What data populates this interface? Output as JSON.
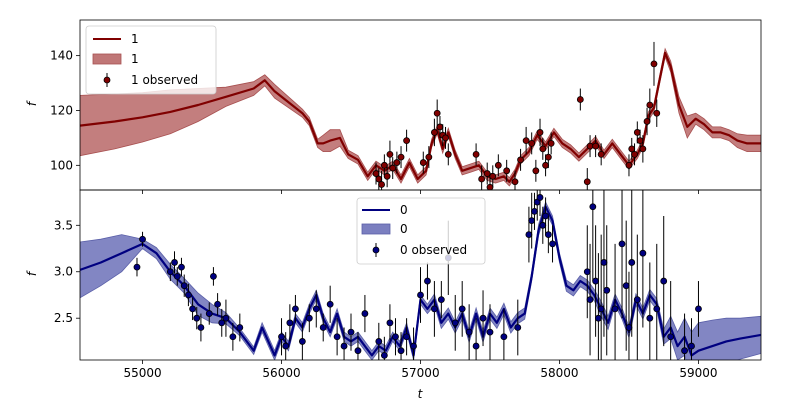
{
  "chart_data": [
    {
      "type": "line",
      "panel": "top",
      "xlim": [
        54550,
        59450
      ],
      "ylim": [
        91,
        153
      ],
      "yticks": [
        100,
        120,
        140
      ],
      "ylabel": "f",
      "xlabel": "",
      "legend": [
        "1",
        "1",
        "1 observed"
      ],
      "legend_position": "top-left",
      "colors": {
        "line": "#800000",
        "band": "#c07777",
        "band_edge": "#a85050"
      },
      "series": [
        {
          "name": "1",
          "kind": "model",
          "x": [
            54550,
            54800,
            55000,
            55200,
            55400,
            55600,
            55800,
            55880,
            55950,
            56050,
            56150,
            56200,
            56260,
            56300,
            56350,
            56420,
            56480,
            56550,
            56620,
            56680,
            56740,
            56800,
            56860,
            56920,
            56980,
            57040,
            57080,
            57120,
            57160,
            57200,
            57250,
            57300,
            57360,
            57420,
            57480,
            57540,
            57600,
            57640,
            57680,
            57720,
            57780,
            57840,
            57900,
            57960,
            58020,
            58080,
            58140,
            58200,
            58260,
            58320,
            58380,
            58440,
            58500,
            58560,
            58600,
            58640,
            58680,
            58720,
            58760,
            58800,
            58860,
            58920,
            58980,
            59040,
            59100,
            59160,
            59220,
            59280,
            59350,
            59450
          ],
          "y": [
            114.5,
            116,
            117.5,
            119.5,
            122,
            125,
            128,
            131,
            127,
            123,
            119,
            116,
            108,
            108,
            109,
            110,
            104,
            102,
            96,
            100,
            98,
            100,
            95,
            101,
            95,
            98,
            108,
            113,
            106,
            112,
            104,
            98,
            99,
            100,
            96,
            95,
            96,
            94,
            97,
            102,
            105,
            111,
            107,
            112,
            108,
            106,
            103,
            106,
            109,
            104,
            108,
            104,
            100,
            104,
            108,
            118,
            121,
            131,
            141,
            136,
            122,
            114,
            117,
            115,
            112,
            112,
            111,
            109,
            108,
            108
          ],
          "band_halfwidth": [
            11,
            10,
            9,
            8,
            6,
            3.5,
            2.5,
            2,
            2.5,
            2,
            1.5,
            1.5,
            1.5,
            3,
            4,
            3,
            1.5,
            1.5,
            1.5,
            1.5,
            1.5,
            1.5,
            1.5,
            1.5,
            1.5,
            1.5,
            1.5,
            1.5,
            1.5,
            1.5,
            1.5,
            1.5,
            1.5,
            1.5,
            1.5,
            1.5,
            1.5,
            1.5,
            1.5,
            1.5,
            1.5,
            1.5,
            1.5,
            1.5,
            1.5,
            1.5,
            1.5,
            1.5,
            1.5,
            1.5,
            1.5,
            1.5,
            1.5,
            1.5,
            1.5,
            1.5,
            1.5,
            1.5,
            1.5,
            2,
            3,
            4,
            2,
            2,
            2,
            2,
            2,
            2.5,
            3,
            3
          ]
        },
        {
          "name": "1 observed",
          "kind": "observed",
          "x": [
            56680,
            56700,
            56720,
            56740,
            56760,
            56780,
            56800,
            56830,
            56860,
            56900,
            57020,
            57060,
            57100,
            57120,
            57140,
            57160,
            57180,
            57200,
            57400,
            57440,
            57480,
            57500,
            57520,
            57560,
            57620,
            57680,
            57720,
            57760,
            57800,
            57830,
            57860,
            57880,
            57900,
            57920,
            57940,
            58150,
            58200,
            58220,
            58260,
            58300,
            58500,
            58520,
            58540,
            58560,
            58580,
            58600,
            58630,
            58650,
            58680,
            58700
          ],
          "y": [
            97,
            95,
            93,
            100,
            96,
            104,
            99,
            101,
            103,
            109,
            101,
            103,
            112,
            119,
            114,
            111,
            110,
            104,
            104,
            95,
            97,
            92,
            96,
            100,
            98,
            94,
            102,
            109,
            108,
            98,
            112,
            106,
            100,
            103,
            108,
            124,
            94,
            107,
            107,
            104,
            100,
            106,
            104,
            112,
            109,
            106,
            116,
            122,
            137,
            119
          ],
          "yerr": [
            4,
            4,
            5,
            4,
            4,
            5,
            4,
            4,
            4,
            4,
            4,
            4,
            5,
            5,
            4,
            4,
            4,
            4,
            4,
            5,
            4,
            4,
            4,
            4,
            4,
            4,
            4,
            5,
            4,
            4,
            5,
            4,
            4,
            4,
            4,
            4,
            5,
            4,
            4,
            4,
            4,
            4,
            4,
            4,
            4,
            5,
            5,
            6,
            8,
            5
          ]
        }
      ]
    },
    {
      "type": "line",
      "panel": "bottom",
      "xlim": [
        54550,
        59450
      ],
      "ylim": [
        2.05,
        3.88
      ],
      "yticks": [
        2.5,
        3.0,
        3.5
      ],
      "ytick_labels": [
        "2.5",
        "3.0",
        "3.5"
      ],
      "xticks": [
        55000,
        56000,
        57000,
        58000,
        59000
      ],
      "ylabel": "f",
      "xlabel": "t",
      "legend": [
        "0",
        "0",
        "0 observed"
      ],
      "legend_position": "upper-center",
      "colors": {
        "line": "#000080",
        "band": "#7b7fc0",
        "band_edge": "#5a5fa8"
      },
      "series": [
        {
          "name": "0",
          "kind": "model",
          "x": [
            54550,
            54700,
            54850,
            55000,
            55100,
            55200,
            55300,
            55400,
            55500,
            55600,
            55700,
            55800,
            55860,
            55950,
            56000,
            56050,
            56100,
            56150,
            56200,
            56250,
            56300,
            56350,
            56400,
            56450,
            56500,
            56550,
            56600,
            56650,
            56700,
            56750,
            56800,
            56850,
            56900,
            56950,
            57000,
            57050,
            57100,
            57150,
            57200,
            57250,
            57300,
            57350,
            57400,
            57450,
            57500,
            57550,
            57600,
            57650,
            57700,
            57750,
            57800,
            57850,
            57900,
            57950,
            58000,
            58050,
            58100,
            58150,
            58200,
            58250,
            58300,
            58350,
            58400,
            58450,
            58500,
            58550,
            58600,
            58650,
            58700,
            58750,
            58800,
            58850,
            58900,
            58950,
            59000,
            59100,
            59200,
            59300,
            59450
          ],
          "y": [
            3.02,
            3.1,
            3.2,
            3.3,
            3.2,
            3.0,
            2.85,
            2.65,
            2.55,
            2.5,
            2.35,
            2.15,
            2.4,
            2.1,
            2.3,
            2.2,
            2.5,
            2.4,
            2.6,
            2.75,
            2.5,
            2.35,
            2.55,
            2.3,
            2.25,
            2.3,
            2.2,
            2.1,
            2.2,
            2.15,
            2.3,
            2.2,
            2.4,
            2.1,
            2.7,
            2.6,
            2.7,
            2.45,
            2.55,
            2.4,
            2.55,
            2.3,
            2.55,
            2.3,
            2.55,
            2.45,
            2.6,
            2.4,
            2.5,
            2.55,
            2.95,
            3.45,
            3.7,
            3.55,
            3.15,
            2.85,
            2.8,
            2.9,
            2.85,
            2.75,
            2.6,
            2.45,
            2.7,
            2.55,
            2.35,
            2.7,
            2.55,
            2.75,
            2.65,
            2.3,
            2.4,
            2.2,
            2.3,
            2.1,
            2.15,
            2.2,
            2.25,
            2.28,
            2.32
          ],
          "band_halfwidth": [
            0.3,
            0.25,
            0.2,
            0.05,
            0.06,
            0.08,
            0.08,
            0.12,
            0.1,
            0.06,
            0.04,
            0.04,
            0.05,
            0.05,
            0.05,
            0.05,
            0.05,
            0.05,
            0.05,
            0.05,
            0.05,
            0.05,
            0.05,
            0.05,
            0.05,
            0.05,
            0.05,
            0.05,
            0.05,
            0.05,
            0.05,
            0.05,
            0.05,
            0.05,
            0.05,
            0.05,
            0.06,
            0.06,
            0.06,
            0.06,
            0.06,
            0.06,
            0.06,
            0.06,
            0.06,
            0.06,
            0.06,
            0.06,
            0.06,
            0.06,
            0.05,
            0.06,
            0.05,
            0.05,
            0.05,
            0.06,
            0.06,
            0.06,
            0.06,
            0.06,
            0.08,
            0.07,
            0.06,
            0.06,
            0.06,
            0.06,
            0.06,
            0.06,
            0.06,
            0.08,
            0.12,
            0.15,
            0.2,
            0.25,
            0.3,
            0.28,
            0.25,
            0.22,
            0.2
          ]
        },
        {
          "name": "0 observed",
          "kind": "observed",
          "x": [
            54960,
            55000,
            55200,
            55230,
            55250,
            55280,
            55300,
            55330,
            55360,
            55390,
            55420,
            55480,
            55510,
            55540,
            55570,
            55600,
            55650,
            55700,
            56000,
            56030,
            56060,
            56100,
            56150,
            56200,
            56250,
            56300,
            56350,
            56400,
            56450,
            56500,
            56550,
            56600,
            56700,
            56740,
            56780,
            56820,
            56860,
            56900,
            56950,
            57000,
            57050,
            57100,
            57150,
            57200,
            57250,
            57300,
            57350,
            57400,
            57450,
            57500,
            57600,
            57700,
            57780,
            57800,
            57820,
            57840,
            57860,
            57880,
            57900,
            57920,
            57950,
            58200,
            58220,
            58240,
            58260,
            58280,
            58300,
            58320,
            58340,
            58400,
            58450,
            58480,
            58500,
            58520,
            58560,
            58600,
            58650,
            58700,
            58750,
            58800,
            58900,
            58950,
            59000
          ],
          "y": [
            3.05,
            3.35,
            3.0,
            3.1,
            2.95,
            3.05,
            2.85,
            2.75,
            2.6,
            2.5,
            2.4,
            2.55,
            2.95,
            2.65,
            2.45,
            2.5,
            2.3,
            2.4,
            2.3,
            2.2,
            2.45,
            2.6,
            2.25,
            2.5,
            2.6,
            2.4,
            2.65,
            2.3,
            2.2,
            2.35,
            2.15,
            2.55,
            2.25,
            2.1,
            2.45,
            2.3,
            2.15,
            2.3,
            2.2,
            2.75,
            2.9,
            2.6,
            2.7,
            3.15,
            2.45,
            2.6,
            2.35,
            2.2,
            2.5,
            2.35,
            2.3,
            2.4,
            3.4,
            3.55,
            3.65,
            3.75,
            3.8,
            3.5,
            3.6,
            3.4,
            3.3,
            3.0,
            2.7,
            3.7,
            2.9,
            2.5,
            2.6,
            3.1,
            2.8,
            2.6,
            3.3,
            2.85,
            2.4,
            3.1,
            2.7,
            3.2,
            2.5,
            2.6,
            2.9,
            2.3,
            2.15,
            2.2,
            2.6
          ],
          "yerr": [
            0.1,
            0.08,
            0.1,
            0.12,
            0.1,
            0.1,
            0.12,
            0.12,
            0.12,
            0.12,
            0.15,
            0.12,
            0.1,
            0.12,
            0.15,
            0.2,
            0.15,
            0.15,
            0.2,
            0.15,
            0.2,
            0.15,
            0.2,
            0.15,
            0.2,
            0.15,
            0.2,
            0.2,
            0.2,
            0.2,
            0.2,
            0.2,
            0.2,
            0.2,
            0.2,
            0.2,
            0.2,
            0.2,
            0.2,
            0.3,
            0.2,
            0.3,
            0.2,
            0.4,
            0.3,
            0.3,
            0.3,
            0.3,
            0.3,
            0.3,
            0.3,
            0.3,
            0.3,
            0.3,
            0.2,
            0.2,
            0.2,
            0.2,
            0.2,
            0.2,
            0.2,
            0.5,
            0.6,
            0.8,
            0.6,
            0.7,
            0.8,
            0.8,
            0.7,
            0.7,
            0.8,
            0.7,
            0.6,
            0.8,
            0.7,
            0.8,
            0.6,
            0.7,
            0.7,
            0.6,
            0.4,
            0.3,
            0.3
          ]
        }
      ]
    }
  ]
}
